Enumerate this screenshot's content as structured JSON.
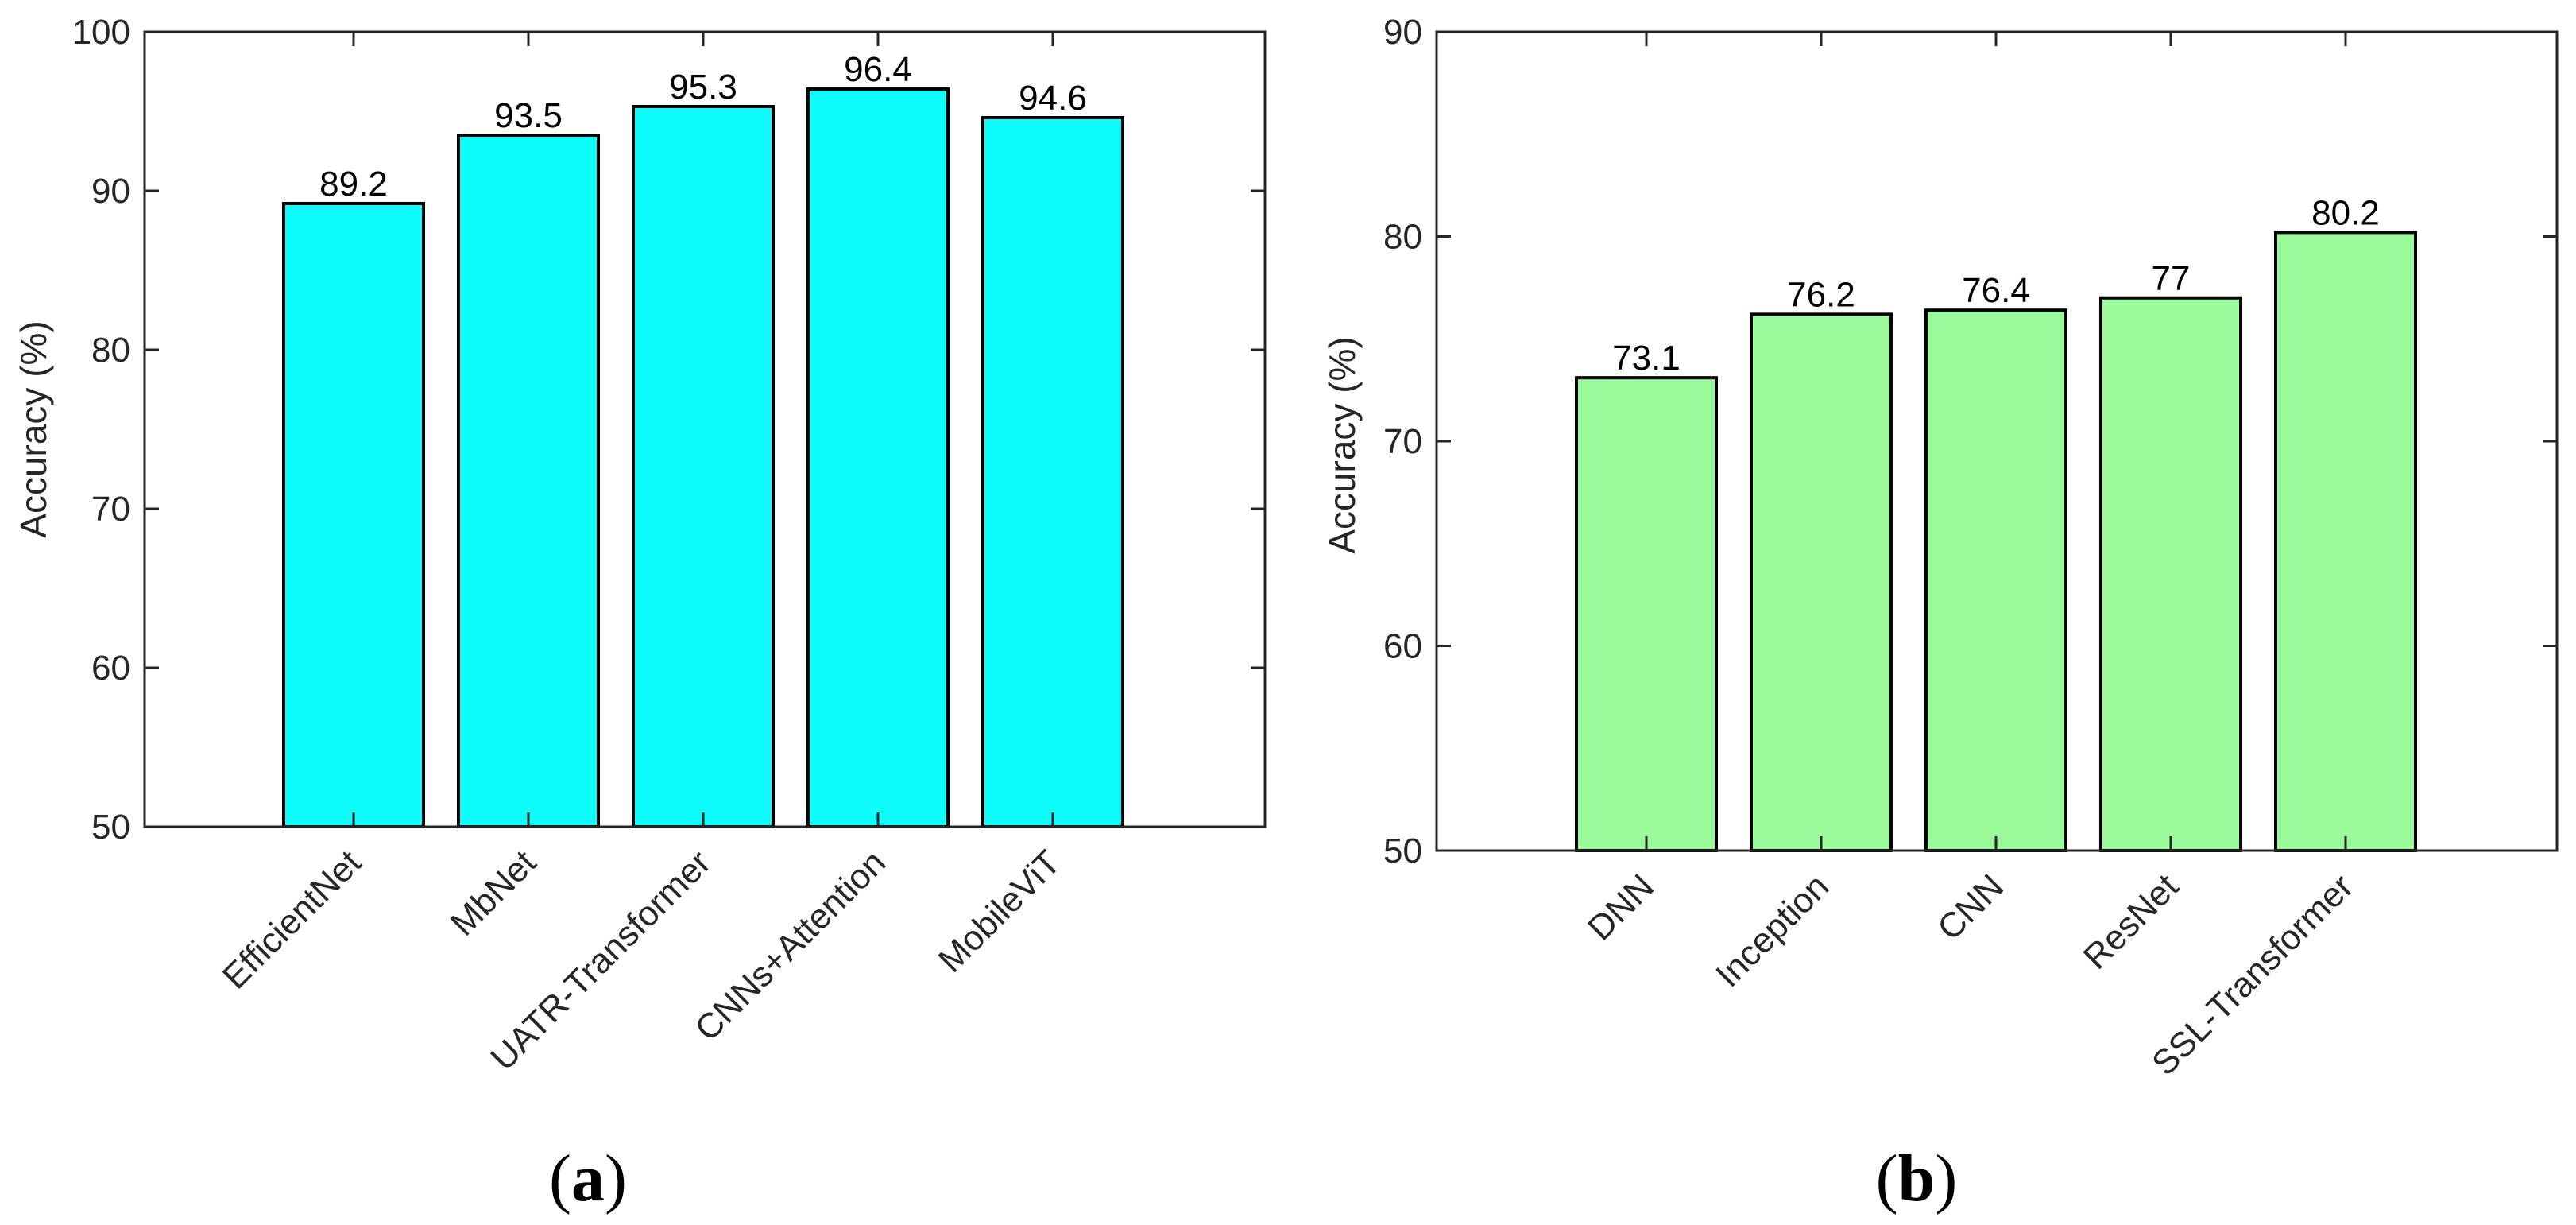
{
  "chart_data": [
    {
      "type": "bar",
      "panel_label": "a",
      "title": "",
      "xlabel": "",
      "ylabel": "Accuracy (%)",
      "ylim": [
        50,
        100
      ],
      "yticks": [
        "50",
        "60",
        "70",
        "80",
        "90",
        "100"
      ],
      "categories": [
        "EfficientNet",
        "MbNet",
        "UATR-Transformer",
        "CNNs+Attention",
        "MobileViT"
      ],
      "values": [
        89.2,
        93.5,
        95.3,
        96.4,
        94.6
      ],
      "value_labels": [
        "89.2",
        "93.5",
        "95.3",
        "96.4",
        "94.6"
      ],
      "bar_color": "#0ffcfc",
      "grid": false
    },
    {
      "type": "bar",
      "panel_label": "b",
      "title": "",
      "xlabel": "",
      "ylabel": "Accuracy (%)",
      "ylim": [
        50,
        90
      ],
      "yticks": [
        "50",
        "60",
        "70",
        "80",
        "90"
      ],
      "categories": [
        "DNN",
        "Inception",
        "CNN",
        "ResNet",
        "SSL-Transformer"
      ],
      "values": [
        73.1,
        76.2,
        76.4,
        77,
        80.2
      ],
      "value_labels": [
        "73.1",
        "76.2",
        "76.4",
        "77",
        "80.2"
      ],
      "bar_color": "#9bfb9b",
      "grid": false
    }
  ],
  "captions": {
    "a": {
      "open": "(",
      "letter": "a",
      "close": ")"
    },
    "b": {
      "open": "(",
      "letter": "b",
      "close": ")"
    }
  }
}
